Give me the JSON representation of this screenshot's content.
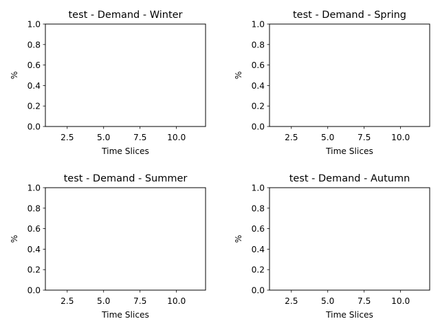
{
  "chart_data": [
    {
      "type": "line",
      "title": "test - Demand - Winter",
      "xlabel": "Time Slices",
      "ylabel": "%",
      "xlim": [
        1.0,
        12.0
      ],
      "ylim": [
        0.0,
        1.0
      ],
      "xticks": [
        2.5,
        5.0,
        7.5,
        10.0
      ],
      "xtick_labels": [
        "2.5",
        "5.0",
        "7.5",
        "10.0"
      ],
      "yticks": [
        0.0,
        0.2,
        0.4,
        0.6,
        0.8,
        1.0
      ],
      "ytick_labels": [
        "0.0",
        "0.2",
        "0.4",
        "0.6",
        "0.8",
        "1.0"
      ],
      "grid": false,
      "series": []
    },
    {
      "type": "line",
      "title": "test - Demand - Spring",
      "xlabel": "Time Slices",
      "ylabel": "%",
      "xlim": [
        1.0,
        12.0
      ],
      "ylim": [
        0.0,
        1.0
      ],
      "xticks": [
        2.5,
        5.0,
        7.5,
        10.0
      ],
      "xtick_labels": [
        "2.5",
        "5.0",
        "7.5",
        "10.0"
      ],
      "yticks": [
        0.0,
        0.2,
        0.4,
        0.6,
        0.8,
        1.0
      ],
      "ytick_labels": [
        "0.0",
        "0.2",
        "0.4",
        "0.6",
        "0.8",
        "1.0"
      ],
      "grid": false,
      "series": []
    },
    {
      "type": "line",
      "title": "test - Demand - Summer",
      "xlabel": "Time Slices",
      "ylabel": "%",
      "xlim": [
        1.0,
        12.0
      ],
      "ylim": [
        0.0,
        1.0
      ],
      "xticks": [
        2.5,
        5.0,
        7.5,
        10.0
      ],
      "xtick_labels": [
        "2.5",
        "5.0",
        "7.5",
        "10.0"
      ],
      "yticks": [
        0.0,
        0.2,
        0.4,
        0.6,
        0.8,
        1.0
      ],
      "ytick_labels": [
        "0.0",
        "0.2",
        "0.4",
        "0.6",
        "0.8",
        "1.0"
      ],
      "grid": false,
      "series": []
    },
    {
      "type": "line",
      "title": "test - Demand - Autumn",
      "xlabel": "Time Slices",
      "ylabel": "%",
      "xlim": [
        1.0,
        12.0
      ],
      "ylim": [
        0.0,
        1.0
      ],
      "xticks": [
        2.5,
        5.0,
        7.5,
        10.0
      ],
      "xtick_labels": [
        "2.5",
        "5.0",
        "7.5",
        "10.0"
      ],
      "yticks": [
        0.0,
        0.2,
        0.4,
        0.6,
        0.8,
        1.0
      ],
      "ytick_labels": [
        "0.0",
        "0.2",
        "0.4",
        "0.6",
        "0.8",
        "1.0"
      ],
      "grid": false,
      "series": []
    }
  ]
}
